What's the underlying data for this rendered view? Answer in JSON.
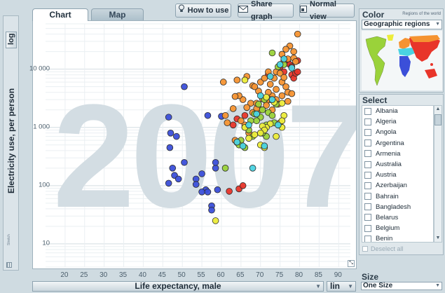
{
  "tabs": {
    "chart": "Chart",
    "map": "Map"
  },
  "toolbar": {
    "how_to_use": "How to use",
    "share_graph": "Share graph",
    "normal_view": "Normal view"
  },
  "y_axis": {
    "scale": "log",
    "label": "Electricity use, per person",
    "tiny": "Stretch"
  },
  "x_axis": {
    "label": "Life expectancy, male",
    "scale": "lin"
  },
  "year_watermark": "2007",
  "color_panel": {
    "title": "Color",
    "subtitle": "Regions of the world",
    "selected": "Geographic regions",
    "region_colors": {
      "asia": "#e8352a",
      "europe": "#f59331",
      "americas": "#9ad23a",
      "africa": "#3b4fd9",
      "middle_east": "#4ad3e2",
      "other": "#ecec3a"
    }
  },
  "select_panel": {
    "title": "Select",
    "countries": [
      "Albania",
      "Algeria",
      "Angola",
      "Argentina",
      "Armenia",
      "Australia",
      "Austria",
      "Azerbaijan",
      "Bahrain",
      "Bangladesh",
      "Belarus",
      "Belgium",
      "Benin"
    ],
    "deselect_label": "Deselect all"
  },
  "size_panel": {
    "title": "Size",
    "selected": "One Size"
  },
  "chart_data": {
    "type": "scatter",
    "xlabel": "Life expectancy, male",
    "ylabel": "Electricity use, per person",
    "xlim": [
      15,
      93
    ],
    "ylim": [
      4,
      60000
    ],
    "yscale": "log",
    "x_ticks": [
      20,
      25,
      30,
      35,
      40,
      45,
      50,
      55,
      60,
      65,
      70,
      75,
      80,
      85,
      90
    ],
    "y_ticks": [
      10,
      100,
      1000,
      10000
    ],
    "y_tick_labels": [
      "10",
      "100",
      "1 000",
      "10 000"
    ],
    "grid": true,
    "series": [
      {
        "color": "#3b4fd9",
        "points": [
          [
            50.5,
            5000
          ],
          [
            46.5,
            1500
          ],
          [
            47,
            800
          ],
          [
            46.8,
            450
          ],
          [
            48.5,
            700
          ],
          [
            47.5,
            200
          ],
          [
            48,
            150
          ],
          [
            49,
            130
          ],
          [
            46.5,
            110
          ],
          [
            50.5,
            250
          ],
          [
            53.5,
            130
          ],
          [
            53.5,
            105
          ],
          [
            55,
            160
          ],
          [
            56,
            85
          ],
          [
            55,
            78
          ],
          [
            56.5,
            78
          ],
          [
            57.5,
            45
          ],
          [
            57.5,
            38
          ],
          [
            59,
            85
          ],
          [
            58.5,
            200
          ],
          [
            58.5,
            250
          ],
          [
            60,
            1550
          ],
          [
            56.5,
            1600
          ]
        ]
      },
      {
        "color": "#e8352a",
        "points": [
          [
            62,
            80
          ],
          [
            64.5,
            88
          ],
          [
            65.5,
            100
          ],
          [
            63,
            1100
          ],
          [
            64,
            1400
          ],
          [
            66,
            1600
          ],
          [
            72,
            8000
          ],
          [
            75,
            11000
          ],
          [
            76,
            9000
          ],
          [
            77,
            13000
          ],
          [
            77.5,
            12000
          ],
          [
            78,
            11000
          ],
          [
            78,
            8000
          ],
          [
            78.5,
            7000
          ],
          [
            79,
            8500
          ],
          [
            79.5,
            9000
          ],
          [
            79.5,
            14000
          ]
        ]
      },
      {
        "color": "#f59331",
        "points": [
          [
            79.5,
            40000
          ],
          [
            77.5,
            25000
          ],
          [
            76.5,
            22000
          ],
          [
            78.5,
            20000
          ],
          [
            75.5,
            18000
          ],
          [
            76,
            14000
          ],
          [
            77,
            15000
          ],
          [
            78.5,
            15500
          ],
          [
            79,
            13500
          ],
          [
            74,
            9000
          ],
          [
            75,
            8500
          ],
          [
            75.5,
            6000
          ],
          [
            76.5,
            5000
          ],
          [
            77,
            4000
          ],
          [
            74,
            4500
          ],
          [
            73,
            3500
          ],
          [
            72.5,
            3000
          ],
          [
            71.5,
            2800
          ],
          [
            70.5,
            3100
          ],
          [
            70,
            2000
          ],
          [
            69,
            2100
          ],
          [
            68,
            1800
          ],
          [
            67.5,
            2600
          ],
          [
            66.5,
            2200
          ],
          [
            65.5,
            3000
          ],
          [
            64.5,
            3500
          ],
          [
            63.5,
            3400
          ],
          [
            61,
            1600
          ],
          [
            61.5,
            1200
          ],
          [
            63,
            2100
          ],
          [
            60.5,
            6000
          ],
          [
            64,
            6500
          ],
          [
            66.5,
            7500
          ],
          [
            68,
            5200
          ],
          [
            69.5,
            4200
          ],
          [
            72,
            4000
          ],
          [
            73,
            2000
          ],
          [
            74.5,
            2500
          ],
          [
            75,
            1200
          ],
          [
            66,
            1100
          ],
          [
            65,
            1300
          ],
          [
            67,
            800
          ],
          [
            63.5,
            600
          ],
          [
            64,
            550
          ],
          [
            71.5,
            2400
          ],
          [
            74,
            3000
          ],
          [
            72.5,
            5500
          ],
          [
            70,
            6000
          ],
          [
            68.5,
            5000
          ],
          [
            73.5,
            7000
          ],
          [
            75.5,
            3500
          ],
          [
            77,
            2800
          ],
          [
            78,
            3800
          ],
          [
            76,
            7200
          ],
          [
            71,
            7000
          ],
          [
            72,
            9000
          ],
          [
            69,
            2600
          ]
        ]
      },
      {
        "color": "#9ad23a",
        "points": [
          [
            73,
            19000
          ],
          [
            74.5,
            11000
          ],
          [
            76,
            12000
          ],
          [
            71,
            3000
          ],
          [
            69.5,
            2500
          ],
          [
            70.5,
            2000
          ],
          [
            68.5,
            1700
          ],
          [
            70,
            1500
          ],
          [
            69,
            1300
          ],
          [
            72,
            1800
          ],
          [
            73,
            1600
          ],
          [
            71.5,
            1100
          ],
          [
            66,
            1000
          ],
          [
            67,
            900
          ],
          [
            68,
            700
          ],
          [
            65,
            600
          ],
          [
            66,
            450
          ],
          [
            64.5,
            500
          ],
          [
            61,
            200
          ],
          [
            67.5,
            1300
          ],
          [
            74,
            2500
          ],
          [
            71.5,
            700
          ],
          [
            73.5,
            1200
          ],
          [
            70.5,
            800
          ]
        ]
      },
      {
        "color": "#ecec3a",
        "points": [
          [
            66,
            6500
          ],
          [
            71.5,
            3300
          ],
          [
            73.5,
            2700
          ],
          [
            75.5,
            2600
          ],
          [
            76,
            1600
          ],
          [
            75.5,
            1300
          ],
          [
            72.5,
            1150
          ],
          [
            71.5,
            1000
          ],
          [
            70.5,
            1050
          ],
          [
            71,
            900
          ],
          [
            70,
            800
          ],
          [
            68.5,
            750
          ],
          [
            67,
            650
          ],
          [
            66,
            1000
          ],
          [
            74,
            700
          ],
          [
            75.5,
            1000
          ],
          [
            70,
            500
          ],
          [
            71,
            450
          ],
          [
            58.5,
            25
          ]
        ]
      },
      {
        "color": "#4ad3e2",
        "points": [
          [
            76,
            15000
          ],
          [
            75,
            12000
          ],
          [
            72.5,
            7500
          ],
          [
            78,
            10500
          ],
          [
            70,
            3500
          ],
          [
            73,
            3000
          ],
          [
            69,
            1700
          ],
          [
            67,
            1100
          ],
          [
            65.5,
            480
          ],
          [
            68,
            200
          ],
          [
            64,
            560
          ],
          [
            71,
            480
          ],
          [
            74.5,
            1100
          ]
        ]
      }
    ]
  }
}
